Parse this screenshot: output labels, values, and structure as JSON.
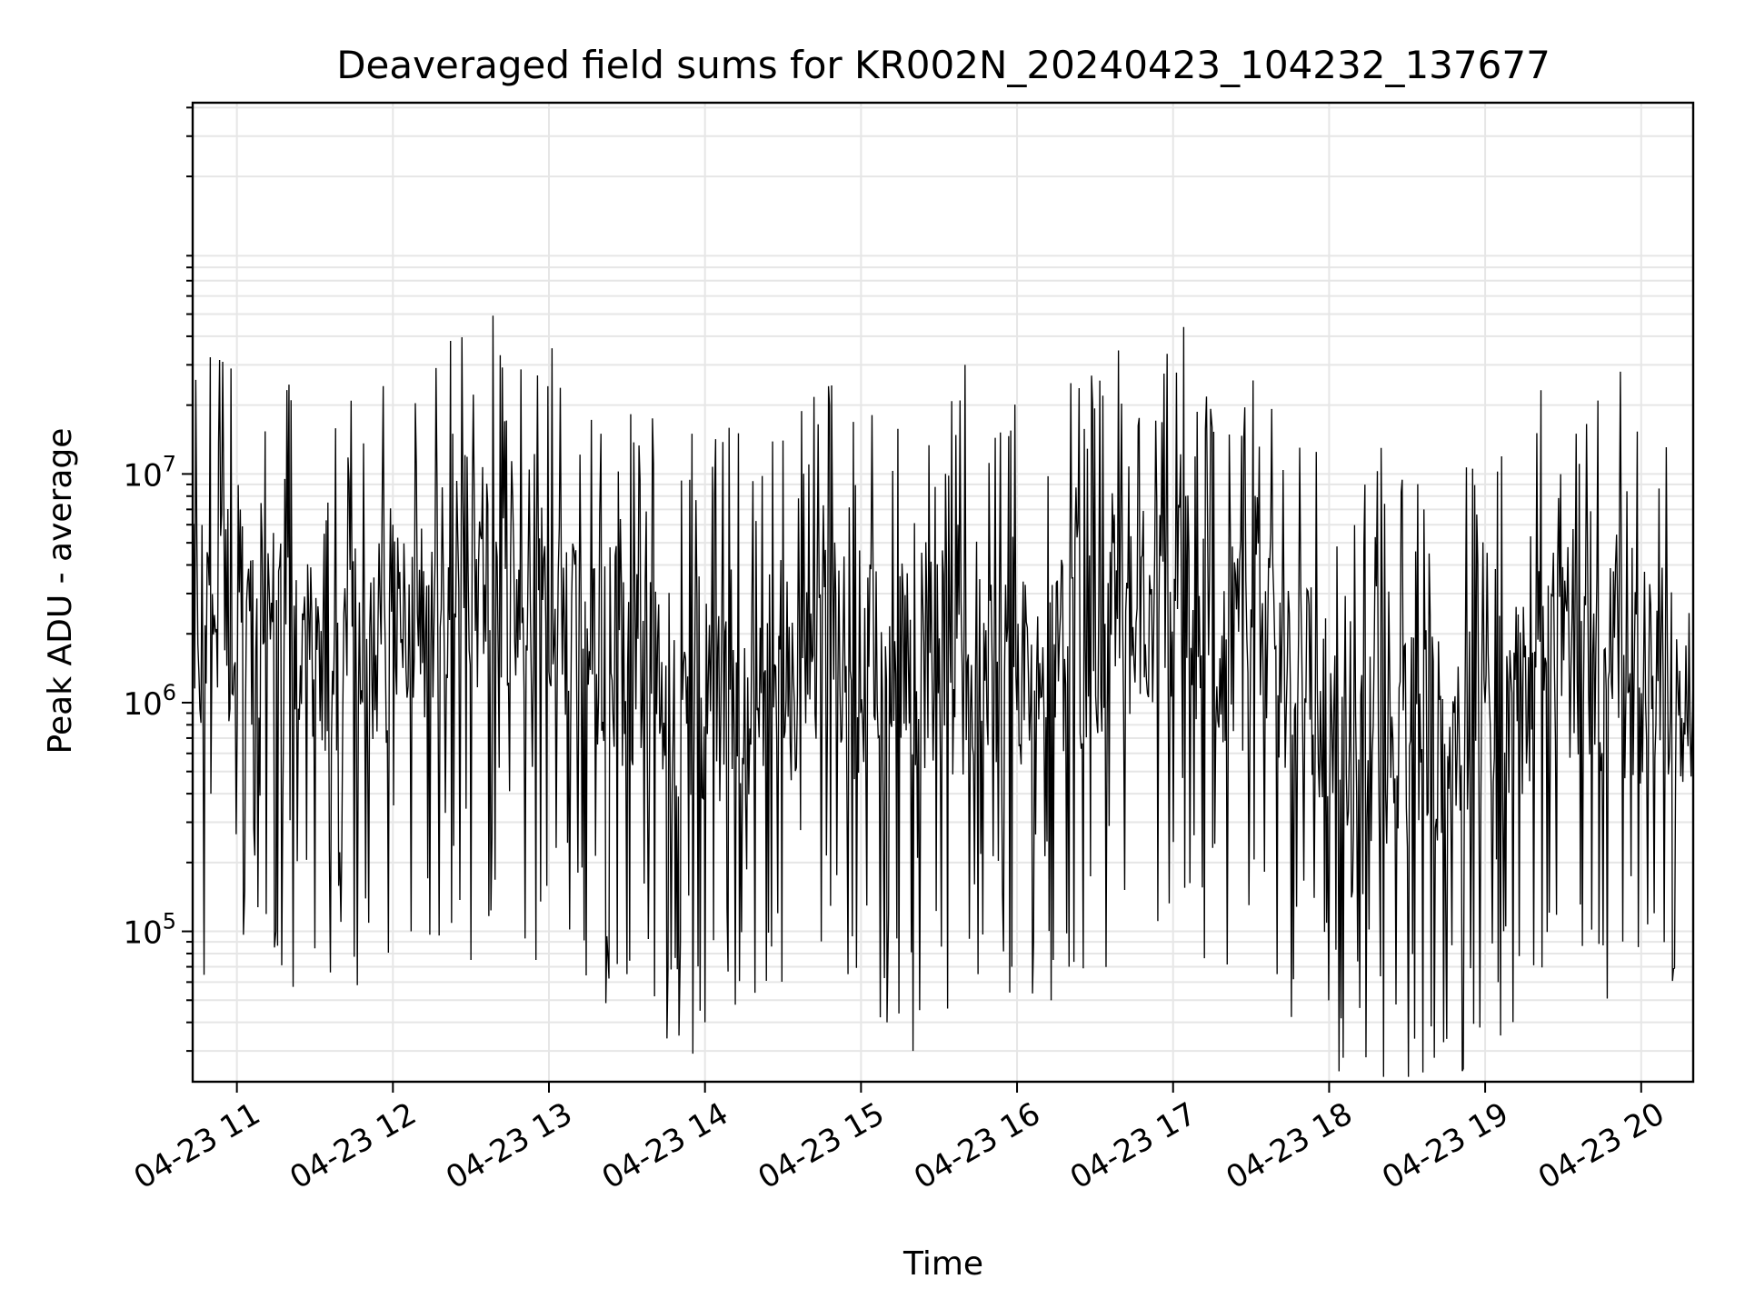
{
  "chart_data": {
    "type": "line",
    "title": "Deaveraged field sums for KR002N_20240423_104232_137677",
    "xlabel": "Time",
    "ylabel": "Peak ADU - average",
    "xlim": [
      "2024-04-23 10:43",
      "2024-04-23 20:20"
    ],
    "ylim": [
      22000,
      420000000
    ],
    "yscale": "log",
    "grid": true,
    "line_color": "#000000",
    "x_ticks": [
      {
        "value": "2024-04-23 11:00",
        "label": "04-23 11"
      },
      {
        "value": "2024-04-23 12:00",
        "label": "04-23 12"
      },
      {
        "value": "2024-04-23 13:00",
        "label": "04-23 13"
      },
      {
        "value": "2024-04-23 14:00",
        "label": "04-23 14"
      },
      {
        "value": "2024-04-23 15:00",
        "label": "04-23 15"
      },
      {
        "value": "2024-04-23 16:00",
        "label": "04-23 16"
      },
      {
        "value": "2024-04-23 17:00",
        "label": "04-23 17"
      },
      {
        "value": "2024-04-23 18:00",
        "label": "04-23 18"
      },
      {
        "value": "2024-04-23 19:00",
        "label": "04-23 19"
      },
      {
        "value": "2024-04-23 20:00",
        "label": "04-23 20"
      }
    ],
    "y_ticks": [
      {
        "value": 100000,
        "base": "10",
        "exp": "5"
      },
      {
        "value": 1000000,
        "base": "10",
        "exp": "6"
      },
      {
        "value": 10000000,
        "base": "10",
        "exp": "7"
      }
    ],
    "series": [
      {
        "x": [
          "2024-04-23 10:43",
          "2024-04-23 20:20"
        ],
        "y": [
          1500000,
          1300000
        ],
        "points": [
          [
            "2024-04-23 10:45",
            1800000
          ],
          [
            "2024-04-23 10:50",
            400000
          ],
          [
            "2024-04-23 10:55",
            7000000
          ],
          [
            "2024-04-23 11:03",
            150000
          ],
          [
            "2024-04-23 11:12",
            4500000
          ],
          [
            "2024-04-23 11:15",
            100000
          ],
          [
            "2024-04-23 11:35",
            7500000
          ],
          [
            "2024-04-23 11:40",
            110000
          ],
          [
            "2024-04-23 12:00",
            6000000
          ],
          [
            "2024-04-23 12:07",
            100000
          ],
          [
            "2024-04-23 12:23",
            15000000
          ],
          [
            "2024-04-23 12:30",
            75000
          ],
          [
            "2024-04-23 12:43",
            17000000
          ],
          [
            "2024-04-23 12:55",
            75000
          ],
          [
            "2024-04-23 13:20",
            15000000
          ],
          [
            "2024-04-23 13:30",
            65000
          ],
          [
            "2024-04-23 13:50",
            35000
          ],
          [
            "2024-04-23 13:55",
            15000000
          ],
          [
            "2024-04-23 14:00",
            40000
          ],
          [
            "2024-04-23 14:30",
            14000000
          ],
          [
            "2024-04-23 14:55",
            65000
          ],
          [
            "2024-04-23 15:10",
            40000
          ],
          [
            "2024-04-23 15:20",
            30000
          ],
          [
            "2024-04-23 15:40",
            30000000
          ],
          [
            "2024-04-23 15:45",
            65000
          ],
          [
            "2024-04-23 15:58",
            70000
          ],
          [
            "2024-04-23 16:20",
            70000
          ],
          [
            "2024-04-23 16:33",
            22000000
          ],
          [
            "2024-04-23 17:15",
            16000000
          ],
          [
            "2024-04-23 17:40",
            65000
          ],
          [
            "2024-04-23 18:20",
            13000000
          ],
          [
            "2024-04-23 18:45",
            70000
          ],
          [
            "2024-04-23 19:05",
            60000
          ],
          [
            "2024-04-23 19:35",
            15000000
          ],
          [
            "2024-04-23 19:52",
            28000000
          ],
          [
            "2024-04-23 20:05",
            120000
          ],
          [
            "2024-04-23 20:20",
            1300000
          ]
        ]
      }
    ]
  }
}
